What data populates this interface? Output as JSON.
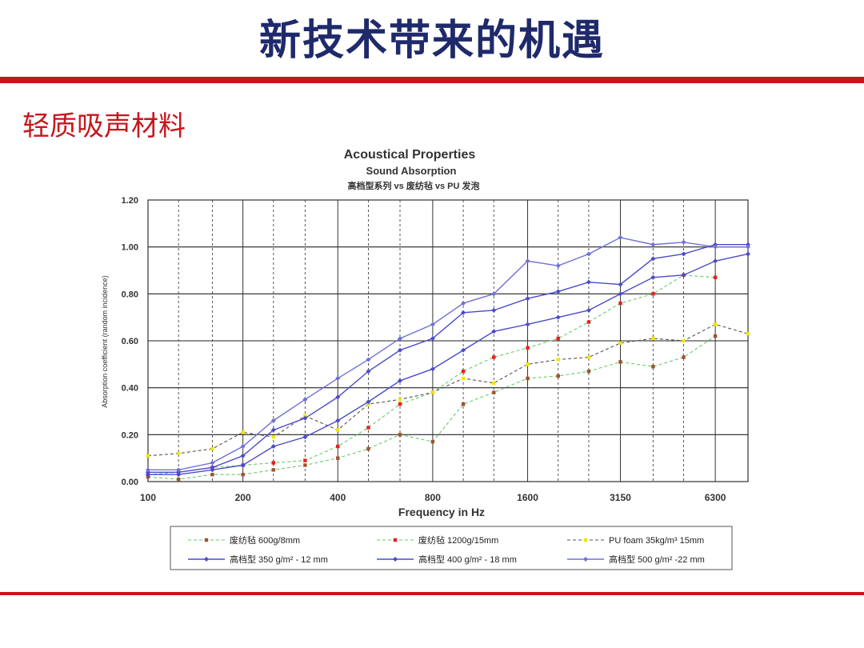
{
  "slide": {
    "title": "新技术带来的机遇",
    "subtitle": "轻质吸声材料"
  },
  "colors": {
    "accent_red": "#c8161d",
    "title_navy": "#1f2a6b"
  },
  "chart_data": {
    "type": "line",
    "title": "Acoustical Properties",
    "subtitle": "Sound Absorption",
    "subtitle2": "高档型系列      vs 废纺毡      vs PU 发泡",
    "xlabel": "Frequency in Hz",
    "ylabel": "Absorption coefficient (random incidence)",
    "x_scale": "log",
    "x": [
      100,
      125,
      160,
      200,
      250,
      315,
      400,
      500,
      630,
      800,
      1000,
      1250,
      1600,
      2000,
      2500,
      3150,
      4000,
      5000,
      6300,
      8000
    ],
    "x_tick_labels": [
      "100",
      "200",
      "400",
      "800",
      "1600",
      "3150",
      "6300"
    ],
    "x_tick_values": [
      100,
      200,
      400,
      800,
      1600,
      3150,
      6300
    ],
    "ylim": [
      0,
      1.2
    ],
    "y_ticks": [
      "0.00",
      "0.20",
      "0.40",
      "0.60",
      "0.80",
      "1.00",
      "1.20"
    ],
    "grid": true,
    "legend_position": "bottom",
    "series": [
      {
        "name": "废纺毡 600g/8mm",
        "style": "dashed",
        "line_color": "#66cc66",
        "marker_color": "#a0522d",
        "values": [
          0.02,
          0.01,
          0.03,
          0.03,
          0.05,
          0.07,
          0.1,
          0.14,
          0.2,
          0.17,
          0.33,
          0.38,
          0.44,
          0.45,
          0.47,
          0.51,
          0.49,
          0.53,
          0.62,
          null
        ]
      },
      {
        "name": "废纺毡 1200g/15mm",
        "style": "dashed",
        "line_color": "#66cc66",
        "marker_color": "#e8201a",
        "values": [
          0.03,
          0.04,
          0.06,
          0.07,
          0.08,
          0.09,
          0.15,
          0.23,
          0.33,
          0.38,
          0.47,
          0.53,
          0.57,
          0.61,
          0.68,
          0.76,
          0.8,
          0.88,
          0.87,
          null
        ]
      },
      {
        "name": "PU foam 35kg/m³ 15mm",
        "style": "dashed",
        "line_color": "#555555",
        "marker_color": "#f2e600",
        "values": [
          0.11,
          0.12,
          0.14,
          0.21,
          0.19,
          0.28,
          0.22,
          0.33,
          0.35,
          0.38,
          0.44,
          0.42,
          0.5,
          0.52,
          0.53,
          0.59,
          0.61,
          0.6,
          0.67,
          0.63
        ]
      },
      {
        "name": "高档型 350 g/m² - 12 mm",
        "style": "solid",
        "line_color": "#4b4bcc",
        "marker_color": "#4b4bcc",
        "values": [
          0.03,
          0.03,
          0.05,
          0.07,
          0.15,
          0.19,
          0.26,
          0.34,
          0.43,
          0.48,
          0.56,
          0.64,
          0.67,
          0.7,
          0.73,
          0.8,
          0.87,
          0.88,
          0.94,
          0.97
        ]
      },
      {
        "name": "高档型 400 g/m² - 18 mm",
        "style": "solid",
        "line_color": "#4b4bcc",
        "marker_color": "#4b4bcc",
        "values": [
          0.04,
          0.04,
          0.06,
          0.11,
          0.22,
          0.27,
          0.36,
          0.47,
          0.56,
          0.61,
          0.72,
          0.73,
          0.78,
          0.81,
          0.85,
          0.84,
          0.95,
          0.97,
          1.01,
          1.01
        ]
      },
      {
        "name": "高档型 500 g/m² -22 mm",
        "style": "solid",
        "line_color": "#7070d8",
        "marker_color": "#7070d8",
        "values": [
          0.05,
          0.05,
          0.08,
          0.15,
          0.26,
          0.35,
          0.44,
          0.52,
          0.61,
          0.67,
          0.76,
          0.8,
          0.94,
          0.92,
          0.97,
          1.04,
          1.01,
          1.02,
          1.0,
          1.0
        ]
      }
    ]
  }
}
